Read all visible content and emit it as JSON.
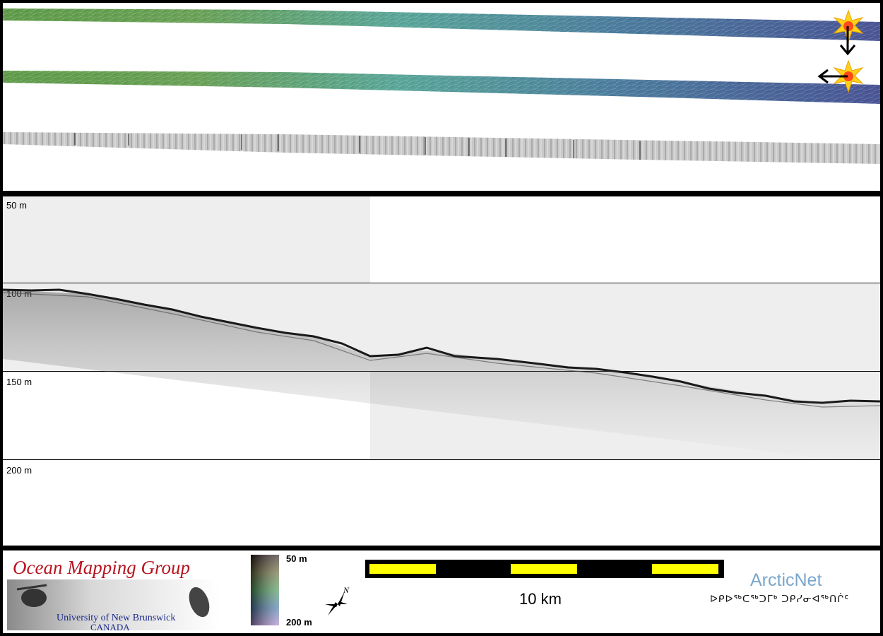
{
  "depth_profile": {
    "depth_labels": [
      "50 m",
      "100 m",
      "150 m",
      "200 m"
    ]
  },
  "logos": {
    "omg_title": "Ocean Mapping Group",
    "omg_university": "University of New Brunswick",
    "omg_country": "CANADA",
    "arcticnet_title": "ArcticNet",
    "arcticnet_syllabics": "ᐅᑭᐅᖅᑕᖅᑐᒥᒃ ᑐᑭᓯᓂᐊᖅᑎᒌᑦ"
  },
  "legend": {
    "colorbar_top": "50 m",
    "colorbar_bottom": "200 m",
    "scale_label": "10 km",
    "north_label": "N"
  },
  "icons": {
    "sun_icon_1": "sun-illumination-icon",
    "sun_icon_2": "sun-illumination-icon",
    "arrow_down": "arrow-down-icon",
    "arrow_left": "arrow-left-icon",
    "north_arrow": "north-arrow-icon"
  },
  "colors": {
    "scale_yellow": "#ffff00",
    "arcticnet_blue": "#7aa6cc",
    "omg_red": "#b8141e",
    "omg_navy": "#1a2a8a"
  }
}
